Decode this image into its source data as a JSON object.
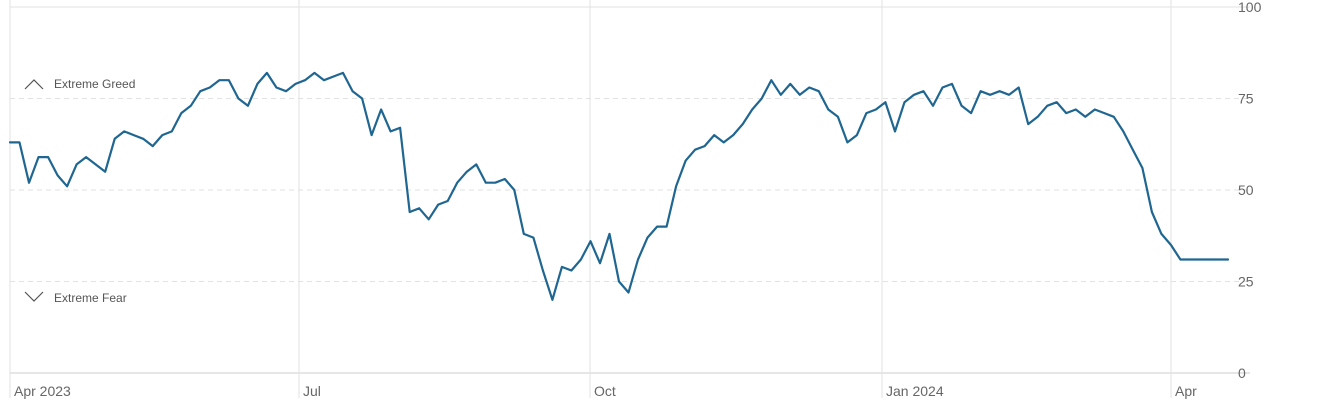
{
  "chart_data": {
    "type": "line",
    "x_start": "2023-04-01",
    "x_end": "2024-04-19",
    "ylim": [
      0,
      100
    ],
    "y_ticks": [
      0,
      25,
      50,
      75,
      100
    ],
    "x_ticks": [
      {
        "date": "2023-04-01",
        "label": "Apr 2023"
      },
      {
        "date": "2023-07-01",
        "label": "Jul"
      },
      {
        "date": "2023-10-01",
        "label": "Oct"
      },
      {
        "date": "2024-01-01",
        "label": "Jan 2024"
      },
      {
        "date": "2024-04-01",
        "label": "Apr"
      }
    ],
    "zones": {
      "upper": {
        "label": "Extreme Greed",
        "icon": "chevron-up-icon"
      },
      "lower": {
        "label": "Extreme Fear",
        "icon": "chevron-down-icon"
      }
    },
    "line_color": "#1f6691",
    "grid": true,
    "series": [
      {
        "x": [
          "2023-04-01",
          "2023-04-04",
          "2023-04-07",
          "2023-04-10",
          "2023-04-13",
          "2023-04-16",
          "2023-04-19",
          "2023-04-22",
          "2023-04-25",
          "2023-04-28",
          "2023-05-01",
          "2023-05-04",
          "2023-05-07",
          "2023-05-10",
          "2023-05-13",
          "2023-05-16",
          "2023-05-19",
          "2023-05-22",
          "2023-05-25",
          "2023-05-28",
          "2023-05-31",
          "2023-06-03",
          "2023-06-06",
          "2023-06-09",
          "2023-06-12",
          "2023-06-15",
          "2023-06-18",
          "2023-06-21",
          "2023-06-24",
          "2023-06-27",
          "2023-06-30",
          "2023-07-03",
          "2023-07-06",
          "2023-07-09",
          "2023-07-12",
          "2023-07-15",
          "2023-07-18",
          "2023-07-21",
          "2023-07-24",
          "2023-07-27",
          "2023-07-30",
          "2023-08-02",
          "2023-08-05",
          "2023-08-08",
          "2023-08-11",
          "2023-08-14",
          "2023-08-17",
          "2023-08-20",
          "2023-08-23",
          "2023-08-26",
          "2023-08-29",
          "2023-09-01",
          "2023-09-04",
          "2023-09-07",
          "2023-09-10",
          "2023-09-13",
          "2023-09-16",
          "2023-09-19",
          "2023-09-22",
          "2023-09-25",
          "2023-09-28",
          "2023-10-01",
          "2023-10-04",
          "2023-10-07",
          "2023-10-10",
          "2023-10-13",
          "2023-10-16",
          "2023-10-19",
          "2023-10-22",
          "2023-10-25",
          "2023-10-28",
          "2023-10-31",
          "2023-11-03",
          "2023-11-06",
          "2023-11-09",
          "2023-11-12",
          "2023-11-15",
          "2023-11-18",
          "2023-11-21",
          "2023-11-24",
          "2023-11-27",
          "2023-11-30",
          "2023-12-03",
          "2023-12-06",
          "2023-12-09",
          "2023-12-12",
          "2023-12-15",
          "2023-12-18",
          "2023-12-21",
          "2023-12-24",
          "2023-12-27",
          "2023-12-30",
          "2024-01-02",
          "2024-01-05",
          "2024-01-08",
          "2024-01-11",
          "2024-01-14",
          "2024-01-17",
          "2024-01-20",
          "2024-01-23",
          "2024-01-26",
          "2024-01-29",
          "2024-02-01",
          "2024-02-04",
          "2024-02-07",
          "2024-02-10",
          "2024-02-13",
          "2024-02-16",
          "2024-02-19",
          "2024-02-22",
          "2024-02-25",
          "2024-02-28",
          "2024-03-02",
          "2024-03-05",
          "2024-03-08",
          "2024-03-11",
          "2024-03-14",
          "2024-03-17",
          "2024-03-20",
          "2024-03-23",
          "2024-03-26",
          "2024-03-29",
          "2024-04-01",
          "2024-04-04",
          "2024-04-07",
          "2024-04-10",
          "2024-04-13",
          "2024-04-16",
          "2024-04-19"
        ],
        "y": [
          63,
          63,
          52,
          59,
          59,
          54,
          51,
          57,
          59,
          57,
          55,
          64,
          66,
          65,
          64,
          62,
          65,
          66,
          71,
          73,
          77,
          78,
          80,
          80,
          75,
          73,
          79,
          82,
          78,
          77,
          79,
          80,
          82,
          80,
          81,
          82,
          77,
          75,
          65,
          72,
          66,
          67,
          44,
          45,
          42,
          46,
          47,
          52,
          55,
          57,
          52,
          52,
          53,
          50,
          38,
          37,
          28,
          20,
          29,
          28,
          31,
          36,
          30,
          38,
          25,
          22,
          31,
          37,
          40,
          40,
          51,
          58,
          61,
          62,
          65,
          63,
          65,
          68,
          72,
          75,
          80,
          76,
          79,
          76,
          78,
          77,
          72,
          70,
          63,
          65,
          71,
          72,
          74,
          66,
          74,
          76,
          77,
          73,
          78,
          79,
          73,
          71,
          77,
          76,
          77,
          76,
          78,
          68,
          70,
          73,
          74,
          71,
          72,
          70,
          72,
          71,
          70,
          66,
          61,
          56,
          44,
          38,
          35,
          31,
          31,
          31,
          31,
          31,
          31
        ]
      }
    ]
  }
}
